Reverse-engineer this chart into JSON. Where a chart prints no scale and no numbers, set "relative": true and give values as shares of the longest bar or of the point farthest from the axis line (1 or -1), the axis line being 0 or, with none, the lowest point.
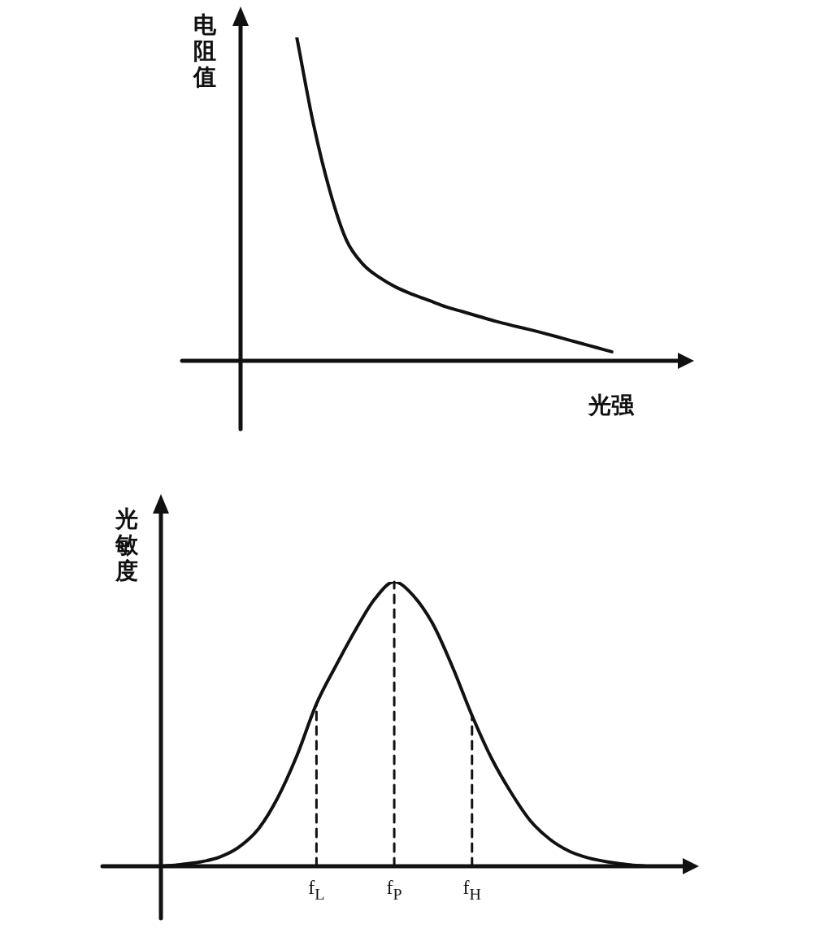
{
  "chart_data": [
    {
      "type": "line",
      "relative": true,
      "xlabel": "光强",
      "ylabel": "电阻值",
      "tick_labels": false,
      "marker": "none",
      "color": "#111111",
      "categories": [
        null,
        null,
        null,
        null,
        null,
        null,
        null,
        null,
        null,
        null,
        null,
        null,
        null,
        null,
        null,
        null,
        null,
        null,
        null,
        null,
        null,
        null,
        null,
        null,
        null,
        null
      ],
      "values": [
        null,
        null,
        null,
        1,
        0.733,
        0.524,
        0.372,
        0.298,
        0.257,
        0.227,
        0.205,
        0.186,
        0.167,
        0.152,
        0.137,
        0.122,
        0.109,
        0.097,
        0.084,
        0.07,
        0.056,
        0.042,
        0.028,
        null,
        null,
        null
      ]
    },
    {
      "type": "line",
      "relative": true,
      "ylabel": "光敏度",
      "tick_labels": "x",
      "marker": "none",
      "color": "#111111",
      "categories": [
        null,
        null,
        null,
        null,
        null,
        null,
        null,
        null,
        "f$_{L}$",
        null,
        null,
        null,
        "f$_{P}$",
        null,
        null,
        null,
        "f$_{H}$",
        null,
        null,
        null,
        null,
        null,
        null,
        null,
        null,
        null,
        null
      ],
      "values": [
        0,
        0.006,
        0.015,
        0.032,
        0.067,
        0.13,
        0.24,
        0.39,
        0.571,
        0.705,
        0.83,
        0.94,
        1,
        0.95,
        0.85,
        0.7,
        0.53,
        0.38,
        0.26,
        0.16,
        0.095,
        0.053,
        0.029,
        0.015,
        0.006,
        0,
        null
      ],
      "ref_lines": [
        {
          "axis": "x",
          "value": "f$_{L}$",
          "line_style": "dashed"
        },
        {
          "axis": "x",
          "value": "f$_{P}$",
          "line_style": "dashed"
        },
        {
          "axis": "x",
          "value": "f$_{H}$",
          "line_style": "dashed"
        }
      ]
    }
  ]
}
